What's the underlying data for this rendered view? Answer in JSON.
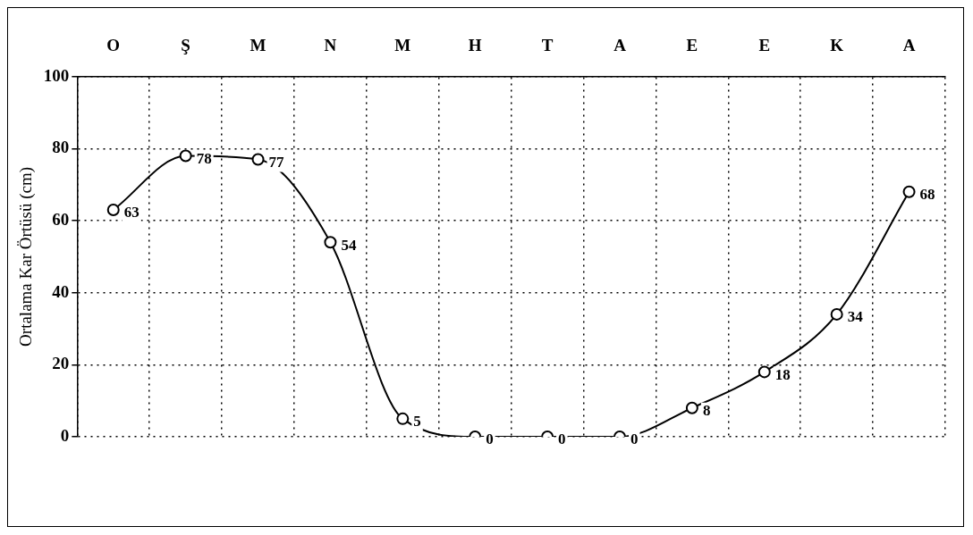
{
  "chart_data": {
    "type": "line",
    "ylabel": "Ortalama Kar Örtüsü (cm)",
    "categories": [
      "O",
      "Ş",
      "M",
      "N",
      "M",
      "H",
      "T",
      "A",
      "E",
      "E",
      "K",
      "A"
    ],
    "series": [
      {
        "color": "#000000",
        "values": [
          63,
          78,
          77,
          54,
          5,
          0,
          0,
          0,
          8,
          18,
          34,
          68
        ]
      }
    ],
    "ylim": [
      0,
      100
    ],
    "yticks": [
      0,
      20,
      40,
      60,
      80,
      100
    ],
    "grid": true,
    "legend": false,
    "marker": "circle",
    "line_style": "solid",
    "data_labels": true
  }
}
